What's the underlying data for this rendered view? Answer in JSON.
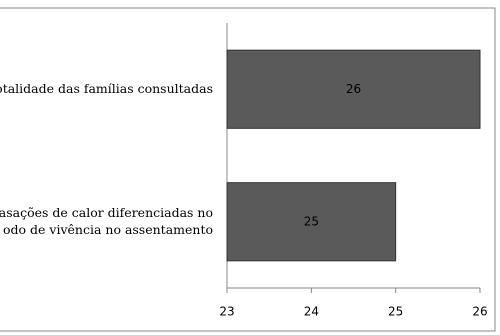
{
  "chart_data": {
    "type": "barh",
    "categories": [
      [
        "otalidade das famílias consultadas"
      ],
      [
        "asações de calor diferenciadas no",
        "odo de vivência no assentamento"
      ]
    ],
    "values": [
      26,
      25
    ],
    "color": "#5a5a5a",
    "xlim": [
      23,
      26
    ],
    "xticks": [
      23,
      24,
      25,
      26
    ]
  }
}
